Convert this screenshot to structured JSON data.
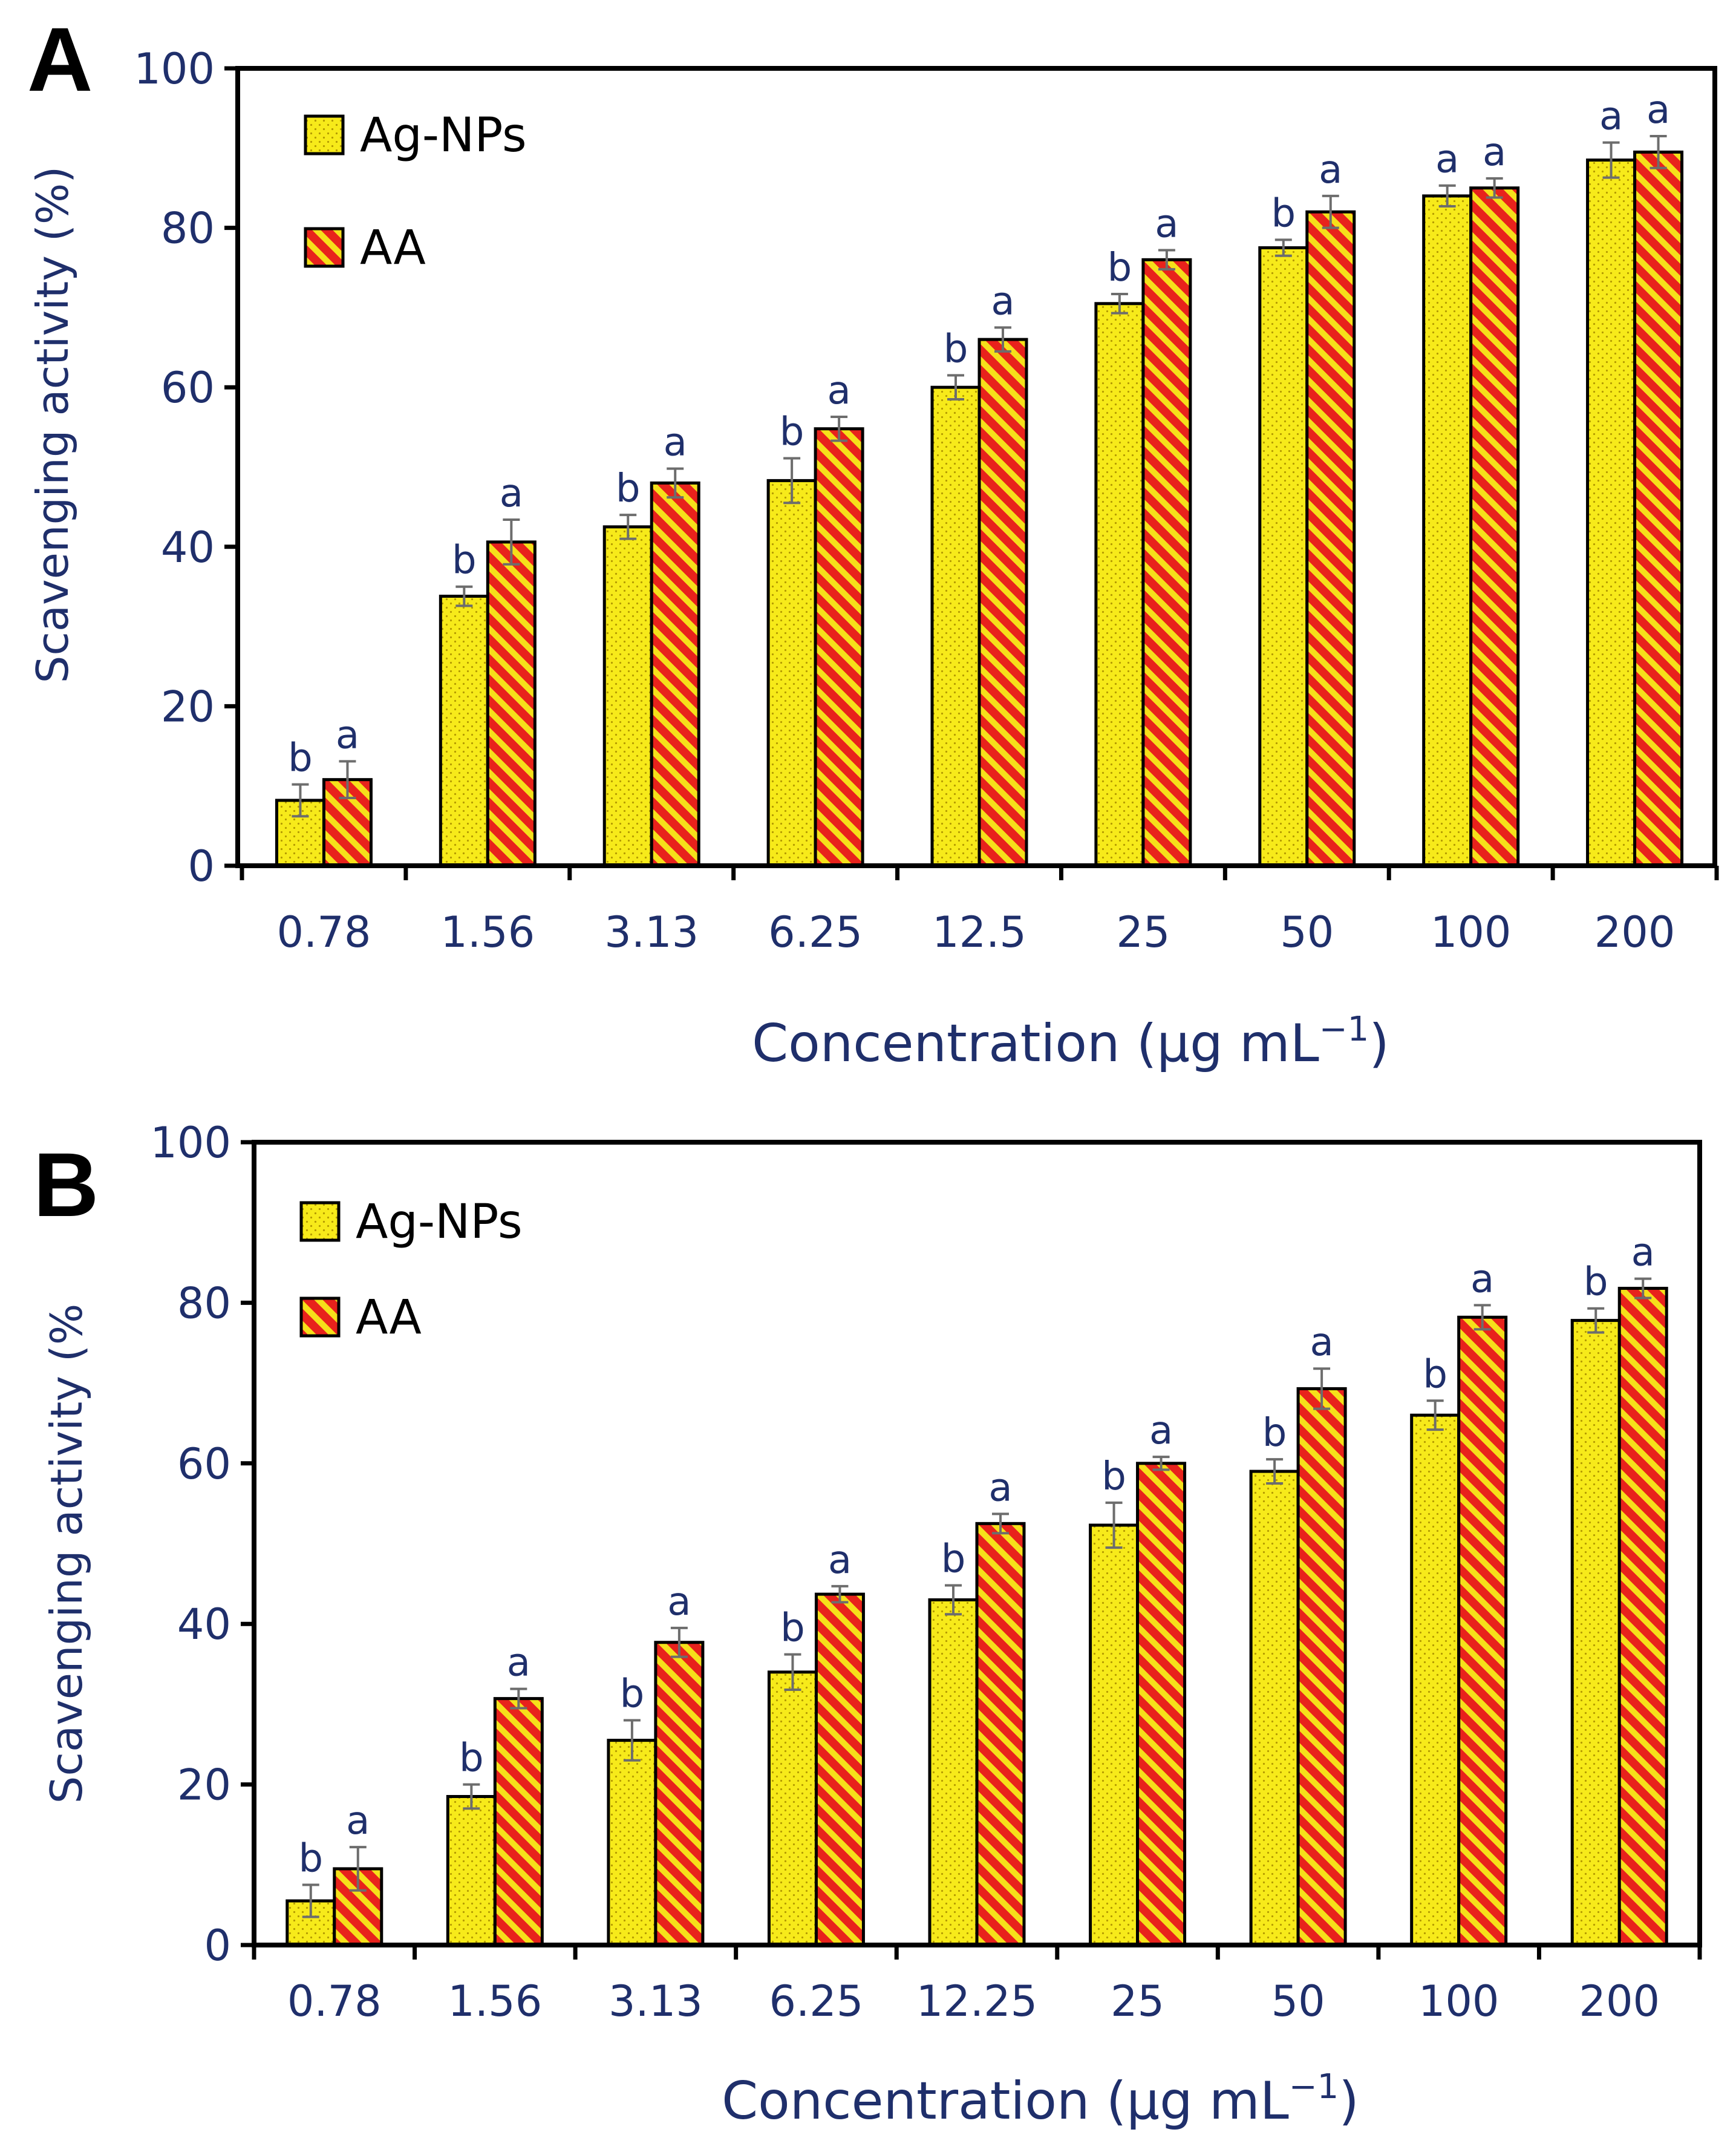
{
  "chart_data": [
    {
      "type": "bar",
      "panel_label": "A",
      "categories": [
        "0.78",
        "1.56",
        "3.13",
        "6.25",
        "12.5",
        "25",
        "50",
        "100",
        "200"
      ],
      "series": [
        {
          "name": "Ag-NPs",
          "values": [
            8.2,
            33.8,
            42.5,
            48.3,
            60.0,
            70.5,
            77.5,
            84.0,
            88.5
          ],
          "errors": [
            2.0,
            1.2,
            1.5,
            2.8,
            1.5,
            1.2,
            1.0,
            1.3,
            2.2
          ],
          "letters": [
            "b",
            "b",
            "b",
            "b",
            "b",
            "b",
            "b",
            "a",
            "a"
          ]
        },
        {
          "name": "AA",
          "values": [
            10.8,
            40.6,
            48.0,
            54.8,
            66.0,
            76.0,
            82.0,
            85.0,
            89.5
          ],
          "errors": [
            2.3,
            2.8,
            1.8,
            1.5,
            1.5,
            1.2,
            2.0,
            1.2,
            2.0
          ],
          "letters": [
            "a",
            "a",
            "a",
            "a",
            "a",
            "a",
            "a",
            "a",
            "a"
          ]
        }
      ],
      "ylabel": "Scavenging activity (%)",
      "xlabel_main": "Concentration (µg mL",
      "xlabel_sup": "−1",
      "xlabel_close": ")",
      "ylim": [
        0,
        100
      ],
      "yticks": [
        "0",
        "20",
        "40",
        "60",
        "80",
        "100"
      ],
      "legend_position": "top-left"
    },
    {
      "type": "bar",
      "panel_label": "B",
      "categories": [
        "0.78",
        "1.56",
        "3.13",
        "6.25",
        "12.25",
        "25",
        "50",
        "100",
        "200"
      ],
      "series": [
        {
          "name": "Ag-NPs",
          "values": [
            5.5,
            18.5,
            25.5,
            34.0,
            43.0,
            52.3,
            59.0,
            66.0,
            77.8
          ],
          "errors": [
            2.0,
            1.5,
            2.5,
            2.2,
            1.8,
            2.8,
            1.5,
            1.8,
            1.5
          ],
          "letters": [
            "b",
            "b",
            "b",
            "b",
            "b",
            "b",
            "b",
            "b",
            "b"
          ]
        },
        {
          "name": "AA",
          "values": [
            9.5,
            30.7,
            37.7,
            43.7,
            52.5,
            60.0,
            69.3,
            78.2,
            81.8
          ],
          "errors": [
            2.7,
            1.2,
            1.8,
            1.0,
            1.2,
            0.8,
            2.5,
            1.5,
            1.2
          ],
          "letters": [
            "a",
            "a",
            "a",
            "a",
            "a",
            "a",
            "a",
            "a",
            "a"
          ]
        }
      ],
      "ylabel": "Scavenging activity (%",
      "xlabel_main": "Concentration (µg mL",
      "xlabel_sup": "−1",
      "xlabel_close": ")",
      "ylim": [
        0,
        100
      ],
      "yticks": [
        "0",
        "20",
        "40",
        "60",
        "80",
        "100"
      ],
      "legend_position": "top-left"
    }
  ],
  "colors": {
    "text": "#1f2f6b",
    "agnps_fill": "#f7ea1a",
    "agnps_dots": "#b49a00",
    "aa_base": "#e8221c",
    "aa_stripe": "#f6e01a",
    "outline": "#000000",
    "errorbar": "#6d6d6d"
  }
}
